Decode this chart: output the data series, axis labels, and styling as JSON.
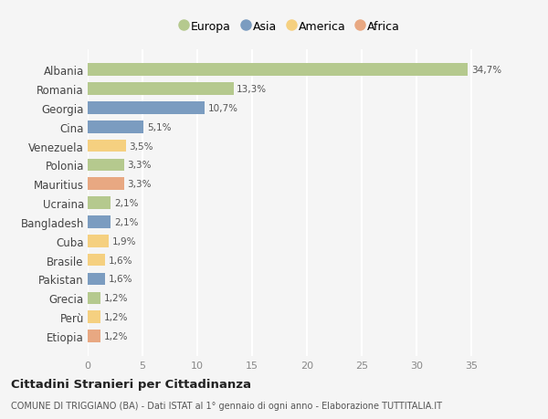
{
  "categories": [
    "Albania",
    "Romania",
    "Georgia",
    "Cina",
    "Venezuela",
    "Polonia",
    "Mauritius",
    "Ucraina",
    "Bangladesh",
    "Cuba",
    "Brasile",
    "Pakistan",
    "Grecia",
    "Perù",
    "Etiopia"
  ],
  "values": [
    34.7,
    13.3,
    10.7,
    5.1,
    3.5,
    3.3,
    3.3,
    2.1,
    2.1,
    1.9,
    1.6,
    1.6,
    1.2,
    1.2,
    1.2
  ],
  "labels": [
    "34,7%",
    "13,3%",
    "10,7%",
    "5,1%",
    "3,5%",
    "3,3%",
    "3,3%",
    "2,1%",
    "2,1%",
    "1,9%",
    "1,6%",
    "1,6%",
    "1,2%",
    "1,2%",
    "1,2%"
  ],
  "colors": [
    "#b5c98e",
    "#b5c98e",
    "#7b9cc0",
    "#7b9cc0",
    "#f5d080",
    "#b5c98e",
    "#e8a882",
    "#b5c98e",
    "#7b9cc0",
    "#f5d080",
    "#f5d080",
    "#7b9cc0",
    "#b5c98e",
    "#f5d080",
    "#e8a882"
  ],
  "legend_labels": [
    "Europa",
    "Asia",
    "America",
    "Africa"
  ],
  "legend_colors": [
    "#b5c98e",
    "#7b9cc0",
    "#f5d080",
    "#e8a882"
  ],
  "xlim": [
    0,
    37
  ],
  "xticks": [
    0,
    5,
    10,
    15,
    20,
    25,
    30,
    35
  ],
  "title": "Cittadini Stranieri per Cittadinanza",
  "subtitle": "COMUNE DI TRIGGIANO (BA) - Dati ISTAT al 1° gennaio di ogni anno - Elaborazione TUTTITALIA.IT",
  "bg_color": "#f5f5f5",
  "grid_color": "#ffffff",
  "bar_height": 0.65
}
